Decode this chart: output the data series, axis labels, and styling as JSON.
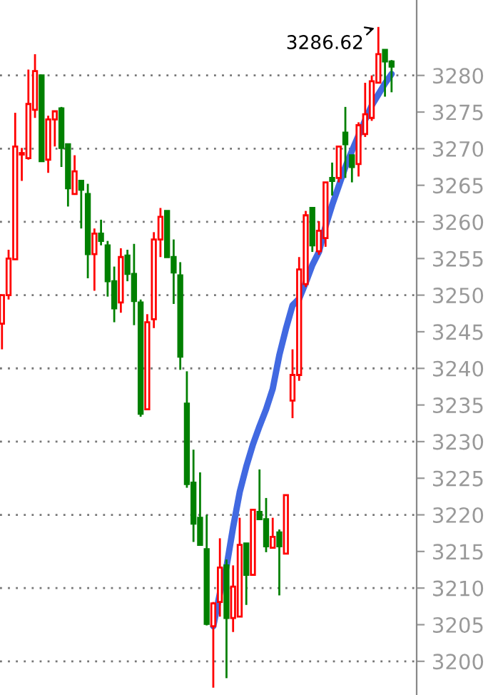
{
  "chart_data": {
    "type": "candlestick",
    "categories": [
      null,
      null,
      null,
      null,
      null,
      null,
      null,
      null,
      null,
      null,
      null,
      null,
      null,
      null,
      null,
      null,
      null,
      null,
      null,
      null,
      null,
      null,
      null,
      null,
      null,
      null,
      null,
      null,
      null,
      null,
      null,
      null,
      null,
      null,
      null,
      null,
      null,
      null,
      null,
      null,
      null,
      null,
      null,
      null,
      null,
      null,
      null,
      null,
      null,
      null,
      null,
      null,
      null,
      null,
      null,
      null,
      null,
      null,
      null,
      null
    ],
    "ohlc": [
      [
        3246.1,
        3250.0,
        3242.6,
        3250.0
      ],
      [
        3250.0,
        3256.2,
        3249.4,
        3255.0
      ],
      [
        3254.9,
        3274.9,
        3254.9,
        3270.3
      ],
      [
        3269.2,
        3270.1,
        3265.6,
        3269.4
      ],
      [
        3268.7,
        3280.8,
        3268.5,
        3276.1
      ],
      [
        3275.3,
        3282.9,
        3274.2,
        3280.6
      ],
      [
        3280.0,
        3280.0,
        3268.3,
        3268.3
      ],
      [
        3268.5,
        3274.5,
        3266.7,
        3274.0
      ],
      [
        3274.0,
        3275.1,
        3270.3,
        3275.1
      ],
      [
        3275.5,
        3275.7,
        3267.5,
        3270.1
      ],
      [
        3270.6,
        3270.6,
        3262.1,
        3264.6
      ],
      [
        3263.8,
        3269.1,
        3263.8,
        3266.9
      ],
      [
        3265.6,
        3265.6,
        3259.1,
        3264.4
      ],
      [
        3263.8,
        3265.2,
        3252.3,
        3255.6
      ],
      [
        3255.6,
        3259.1,
        3250.6,
        3258.4
      ],
      [
        3258.4,
        3260.3,
        3256.8,
        3257.4
      ],
      [
        3256.8,
        3257.4,
        3249.8,
        3251.9
      ],
      [
        3251.9,
        3253.9,
        3246.3,
        3248.2
      ],
      [
        3249.0,
        3256.4,
        3247.6,
        3255.2
      ],
      [
        3255.4,
        3256.2,
        3251.9,
        3252.9
      ],
      [
        3252.9,
        3257.0,
        3245.9,
        3249.2
      ],
      [
        3249.0,
        3249.4,
        3233.4,
        3233.8
      ],
      [
        3234.4,
        3247.4,
        3234.4,
        3246.3
      ],
      [
        3246.7,
        3258.6,
        3245.5,
        3257.6
      ],
      [
        3257.6,
        3261.9,
        3255.2,
        3260.7
      ],
      [
        3261.5,
        3261.5,
        3255.2,
        3255.2
      ],
      [
        3255.2,
        3257.6,
        3248.8,
        3253.1
      ],
      [
        3252.7,
        3254.5,
        3239.8,
        3241.6
      ],
      [
        3235.2,
        3239.6,
        3223.7,
        3224.2
      ],
      [
        3224.4,
        3228.9,
        3216.3,
        3218.8
      ],
      [
        3219.6,
        3225.8,
        3215.9,
        3215.9
      ],
      [
        3215.3,
        3220.0,
        3204.9,
        3205.1
      ],
      [
        3204.8,
        3208.1,
        3196.4,
        3207.9
      ],
      [
        3208.1,
        3216.8,
        3206.1,
        3212.8
      ],
      [
        3213.1,
        3213.9,
        3197.7,
        3205.9
      ],
      [
        3205.9,
        3213.1,
        3204.0,
        3210.2
      ],
      [
        3206.1,
        3219.6,
        3206.1,
        3215.9
      ],
      [
        3216.1,
        3216.1,
        3207.7,
        3211.8
      ],
      [
        3211.8,
        3220.7,
        3211.8,
        3220.7
      ],
      [
        3220.4,
        3226.2,
        3219.4,
        3219.4
      ],
      [
        3219.4,
        3222.3,
        3214.9,
        3215.7
      ],
      [
        3215.5,
        3219.6,
        3215.5,
        3217.0
      ],
      [
        3217.6,
        3218.0,
        3209.0,
        3215.7
      ],
      [
        3214.7,
        3222.7,
        3214.7,
        3222.7
      ],
      [
        3235.6,
        3242.6,
        3233.2,
        3239.1
      ],
      [
        3239.1,
        3255.2,
        3238.3,
        3253.5
      ],
      [
        3251.5,
        3261.5,
        3251.1,
        3260.9
      ],
      [
        3261.9,
        3261.9,
        3255.9,
        3256.8
      ],
      [
        3256.0,
        3260.1,
        3255.5,
        3258.8
      ],
      [
        3257.8,
        3265.4,
        3256.6,
        3265.4
      ],
      [
        3266.0,
        3268.1,
        3263.6,
        3265.6
      ],
      [
        3266.0,
        3270.4,
        3265.4,
        3270.3
      ],
      [
        3272.2,
        3275.7,
        3266.0,
        3270.6
      ],
      [
        3269.1,
        3269.1,
        3265.4,
        3267.5
      ],
      [
        3267.9,
        3273.6,
        3266.2,
        3273.2
      ],
      [
        3272.0,
        3279.0,
        3271.6,
        3274.7
      ],
      [
        3274.2,
        3280.0,
        3273.8,
        3279.2
      ],
      [
        3279.0,
        3286.62,
        3279.0,
        3282.9
      ],
      [
        3283.5,
        3283.5,
        3277.1,
        3281.9
      ],
      [
        3281.9,
        3282.1,
        3277.7,
        3281.2
      ]
    ],
    "colors": [
      "#ff0000",
      "#ff0000",
      "#ff0000",
      "#ff0000",
      "#ff0000",
      "#ff0000",
      "#008000",
      "#ff0000",
      "#ff0000",
      "#008000",
      "#008000",
      "#ff0000",
      "#008000",
      "#008000",
      "#ff0000",
      "#008000",
      "#008000",
      "#008000",
      "#ff0000",
      "#008000",
      "#008000",
      "#008000",
      "#ff0000",
      "#ff0000",
      "#ff0000",
      "#008000",
      "#008000",
      "#008000",
      "#008000",
      "#008000",
      "#008000",
      "#008000",
      "#ff0000",
      "#ff0000",
      "#008000",
      "#ff0000",
      "#ff0000",
      "#008000",
      "#ff0000",
      "#008000",
      "#008000",
      "#ff0000",
      "#008000",
      "#ff0000",
      "#ff0000",
      "#ff0000",
      "#ff0000",
      "#008000",
      "#ff0000",
      "#ff0000",
      "#008000",
      "#ff0000",
      "#008000",
      "#008000",
      "#ff0000",
      "#ff0000",
      "#ff0000",
      "#ff0000",
      "#008000",
      "#008000"
    ],
    "series": [
      {
        "type": "line",
        "color": "#4169e1",
        "values": [
          null,
          null,
          null,
          null,
          null,
          null,
          null,
          null,
          null,
          null,
          null,
          null,
          null,
          null,
          null,
          null,
          null,
          null,
          null,
          null,
          null,
          null,
          null,
          null,
          null,
          null,
          null,
          null,
          null,
          null,
          null,
          null,
          3204.8,
          3209.3,
          3212.9,
          3218.3,
          3223.1,
          3226.6,
          3229.6,
          3232.1,
          3234.4,
          3237.2,
          3241.8,
          3245.4,
          3248.6,
          3249.5,
          3251.7,
          3254.1,
          3255.9,
          3259.4,
          3262.3,
          3264.9,
          3267.5,
          3269.7,
          3271.8,
          3273.9,
          3275.9,
          3277.4,
          3278.9,
          3280.2
        ]
      }
    ],
    "ylim": [
      3195.4,
      3290.3
    ],
    "yticks": [
      3200,
      3205,
      3210,
      3215,
      3220,
      3225,
      3230,
      3235,
      3240,
      3245,
      3250,
      3255,
      3260,
      3265,
      3270,
      3275,
      3280
    ],
    "grid": "y",
    "annotations": [
      "3286.62"
    ]
  }
}
